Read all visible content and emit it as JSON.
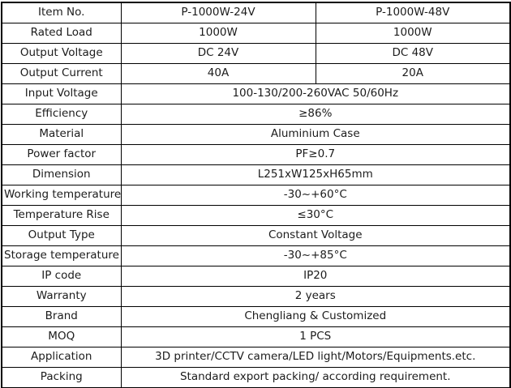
{
  "table": {
    "colors": {
      "border": "#000000",
      "text": "#1c1c1c",
      "background": "#ffffff"
    },
    "rows": [
      {
        "label": "Item No.",
        "values": [
          "P-1000W-24V",
          "P-1000W-48V"
        ]
      },
      {
        "label": "Rated Load",
        "values": [
          "1000W",
          "1000W"
        ]
      },
      {
        "label": "Output Voltage",
        "values": [
          "DC 24V",
          "DC 48V"
        ]
      },
      {
        "label": "Output Current",
        "values": [
          "40A",
          "20A"
        ]
      },
      {
        "label": "Input Voltage",
        "values": [
          "100-130/200-260VAC 50/60Hz"
        ]
      },
      {
        "label": "Efficiency",
        "values": [
          "≥86%"
        ]
      },
      {
        "label": "Material",
        "values": [
          "Aluminium Case"
        ]
      },
      {
        "label": "Power factor",
        "values": [
          "PF≥0.7"
        ]
      },
      {
        "label": "Dimension",
        "values": [
          "L251xW125xH65mm"
        ]
      },
      {
        "label": "Working temperature",
        "values": [
          "-30~+60°C"
        ]
      },
      {
        "label": "Temperature Rise",
        "values": [
          "≤30°C"
        ]
      },
      {
        "label": "Output Type",
        "values": [
          "Constant Voltage"
        ]
      },
      {
        "label": "Storage temperature",
        "values": [
          "-30~+85°C"
        ]
      },
      {
        "label": "IP code",
        "values": [
          "IP20"
        ]
      },
      {
        "label": "Warranty",
        "values": [
          "2 years"
        ]
      },
      {
        "label": "Brand",
        "values": [
          "Chengliang & Customized"
        ]
      },
      {
        "label": "MOQ",
        "values": [
          "1 PCS"
        ]
      },
      {
        "label": "Application",
        "values": [
          "3D printer/CCTV camera/LED light/Motors/Equipments.etc."
        ]
      },
      {
        "label": "Packing",
        "values": [
          "Standard export packing/ according requirement."
        ]
      }
    ]
  }
}
